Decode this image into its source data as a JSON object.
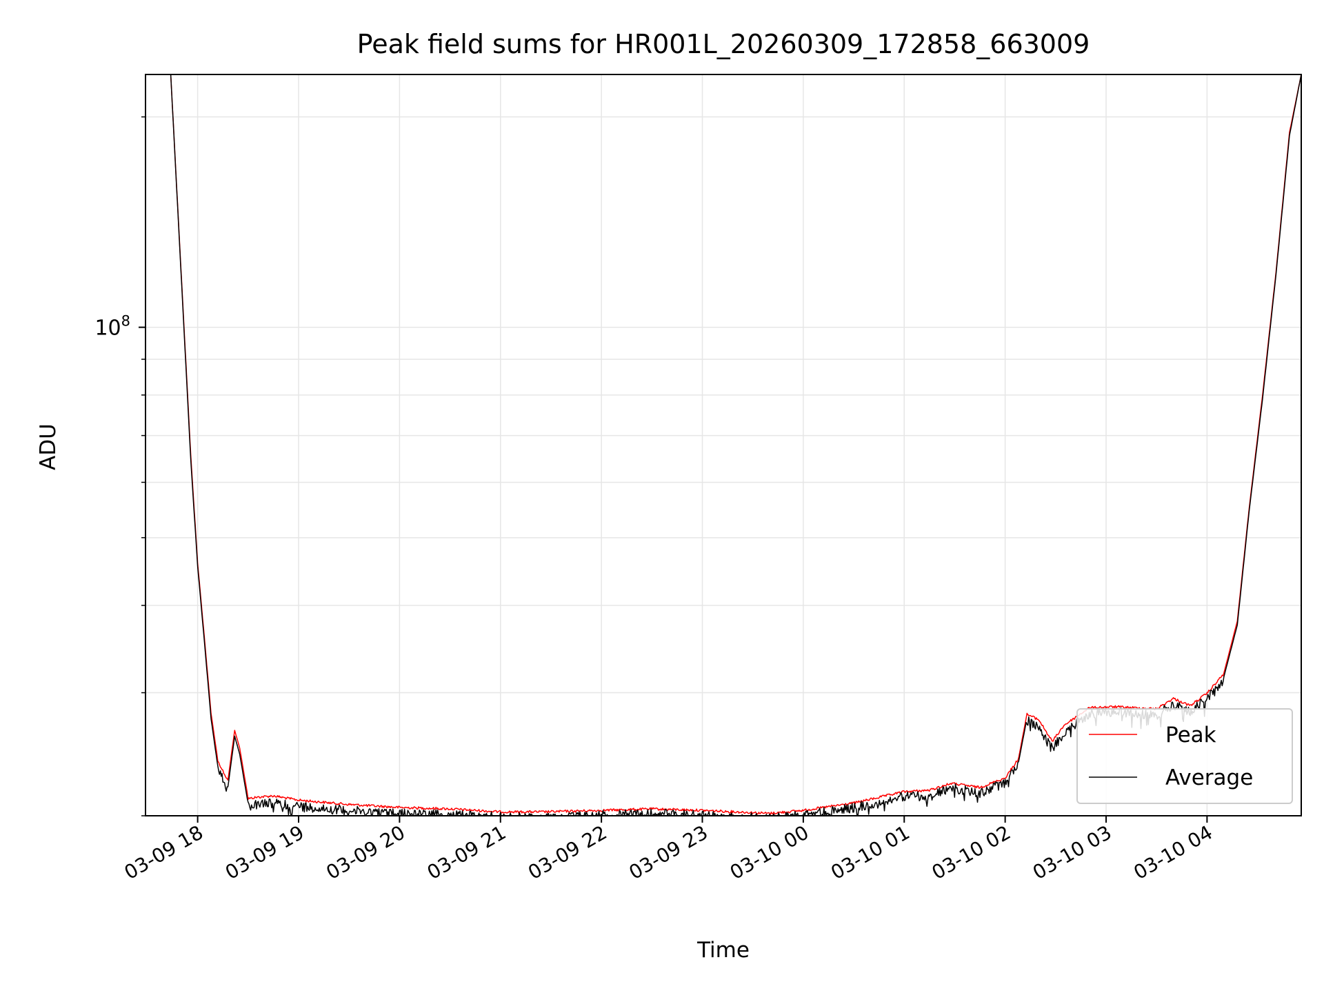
{
  "chart_data": {
    "type": "line",
    "title": "Peak field sums for HR001L_20260309_172858_663009",
    "xlabel": "Time",
    "ylabel": "ADU",
    "yscale": "log",
    "grid": true,
    "legend_position": "bottom-right",
    "xlim": [
      "2026-03-09 17:29",
      "2026-03-10 04:56"
    ],
    "ylim": [
      20000000,
      230000000
    ],
    "x_ticks": [
      "03-09 18",
      "03-09 19",
      "03-09 20",
      "03-09 21",
      "03-09 22",
      "03-09 23",
      "03-10 00",
      "03-10 01",
      "03-10 02",
      "03-10 03",
      "03-10 04"
    ],
    "x_tick_values": [
      "2026-03-09 18:00",
      "2026-03-09 19:00",
      "2026-03-09 20:00",
      "2026-03-09 21:00",
      "2026-03-09 22:00",
      "2026-03-09 23:00",
      "2026-03-10 00:00",
      "2026-03-10 01:00",
      "2026-03-10 02:00",
      "2026-03-10 03:00",
      "2026-03-10 04:00"
    ],
    "y_tick_label": {
      "base": "10",
      "exp": "8"
    },
    "y_tick_value": 100000000,
    "x": [
      "2026-03-09 17:29",
      "2026-03-09 17:44",
      "2026-03-09 17:51",
      "2026-03-09 17:56",
      "2026-03-09 18:00",
      "2026-03-09 18:04",
      "2026-03-09 18:08",
      "2026-03-09 18:12",
      "2026-03-09 18:18",
      "2026-03-09 18:22",
      "2026-03-09 18:25",
      "2026-03-09 18:30",
      "2026-03-09 18:35",
      "2026-03-09 18:45",
      "2026-03-09 19:00",
      "2026-03-09 19:30",
      "2026-03-09 20:00",
      "2026-03-09 20:30",
      "2026-03-09 21:00",
      "2026-03-09 21:25",
      "2026-03-09 22:00",
      "2026-03-09 22:30",
      "2026-03-09 23:00",
      "2026-03-09 23:40",
      "2026-03-10 00:00",
      "2026-03-10 00:30",
      "2026-03-10 01:00",
      "2026-03-10 01:15",
      "2026-03-10 01:28",
      "2026-03-10 01:45",
      "2026-03-10 02:00",
      "2026-03-10 02:08",
      "2026-03-10 02:13",
      "2026-03-10 02:20",
      "2026-03-10 02:28",
      "2026-03-10 02:35",
      "2026-03-10 02:50",
      "2026-03-10 03:05",
      "2026-03-10 03:30",
      "2026-03-10 03:40",
      "2026-03-10 03:50",
      "2026-03-10 04:00",
      "2026-03-10 04:10",
      "2026-03-10 04:18",
      "2026-03-10 04:25",
      "2026-03-10 04:33",
      "2026-03-10 04:41",
      "2026-03-10 04:49",
      "2026-03-10 04:56"
    ],
    "series": [
      {
        "name": "Peak",
        "color": "#ff0000",
        "values": [
          230000000,
          230000000,
          110000000,
          65000000,
          46000000,
          36000000,
          28000000,
          24000000,
          22500000,
          26500000,
          25000000,
          21200000,
          21300000,
          21400000,
          21100000,
          20800000,
          20600000,
          20500000,
          20300000,
          20300000,
          20400000,
          20500000,
          20400000,
          20200000,
          20400000,
          20900000,
          21700000,
          21800000,
          22300000,
          22000000,
          22700000,
          24200000,
          28000000,
          27500000,
          25600000,
          27000000,
          28600000,
          28700000,
          28500000,
          29500000,
          28800000,
          30000000,
          32000000,
          38000000,
          55000000,
          80000000,
          120000000,
          190000000,
          230000000
        ]
      },
      {
        "name": "Average",
        "color": "#000000",
        "values": [
          230000000,
          230000000,
          109000000,
          64000000,
          45500000,
          35500000,
          27500000,
          23500000,
          22000000,
          26000000,
          24500000,
          20800000,
          20900000,
          21000000,
          20800000,
          20500000,
          20300000,
          20200000,
          20100000,
          20000000,
          20200000,
          20300000,
          20200000,
          20000000,
          20200000,
          20700000,
          21500000,
          21500000,
          22100000,
          21700000,
          22500000,
          23900000,
          27600000,
          27000000,
          25100000,
          26500000,
          28200000,
          28400000,
          28100000,
          29100000,
          28400000,
          29700000,
          31600000,
          37500000,
          54500000,
          79000000,
          119000000,
          188000000,
          230000000
        ]
      }
    ]
  }
}
